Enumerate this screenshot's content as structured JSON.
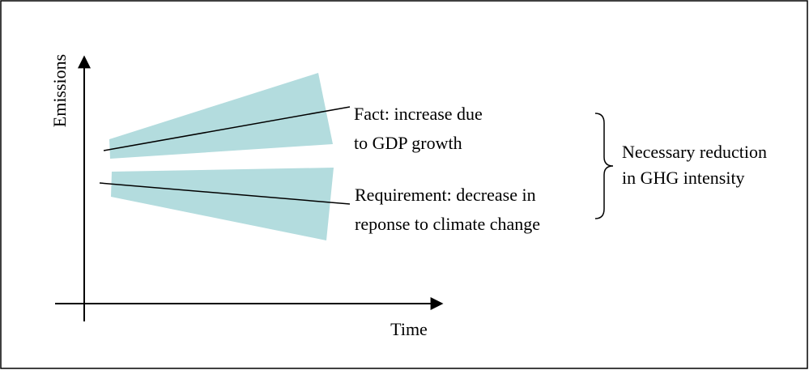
{
  "axes": {
    "y_label": "Emissions",
    "x_label": "Time"
  },
  "annotations": [
    {
      "lines": [
        "Fact: increase due",
        "to GDP growth"
      ]
    },
    {
      "lines": [
        "Requirement: decrease in",
        "reponse to climate change"
      ]
    }
  ],
  "brace_label": {
    "lines": [
      "Necessary reduction",
      "in GHG intensity"
    ]
  }
}
